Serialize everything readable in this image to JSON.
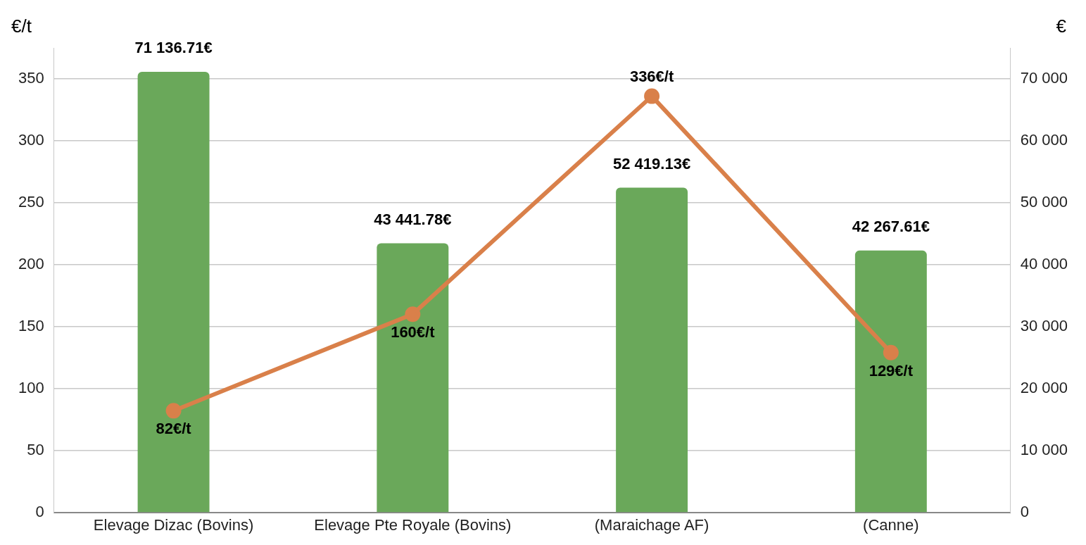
{
  "chart_data": {
    "type": "bar",
    "ylabel": "€/t",
    "y2label": "€",
    "categories": [
      "Elevage Dizac (Bovins)",
      "Elevage Pte Royale (Bovins)",
      "(Maraichage AF)",
      "(Canne)"
    ],
    "series": [
      {
        "axis": "y2",
        "color": "#6aa85a",
        "values": [
          71136.71,
          43441.78,
          52419.13,
          42267.61
        ],
        "value_labels": [
          "71 136.71€",
          "43 441.78€",
          "52 419.13€",
          "42 267.61€"
        ]
      },
      {
        "type": "line",
        "axis": "y",
        "color": "#d9804a",
        "marker": "circle",
        "values": [
          82,
          160,
          336,
          129
        ],
        "value_labels": [
          "82€/t",
          "160€/t",
          "336€/t",
          "129€/t"
        ]
      }
    ],
    "ylim": [
      0,
      375
    ],
    "yticks": [
      0,
      50,
      100,
      150,
      200,
      250,
      300,
      350
    ],
    "y2lim": [
      0,
      75000
    ],
    "y2ticks": [
      {
        "value": 0,
        "label": "0"
      },
      {
        "value": 10000,
        "label": "10 000"
      },
      {
        "value": 20000,
        "label": "20 000"
      },
      {
        "value": 30000,
        "label": "30 000"
      },
      {
        "value": 40000,
        "label": "40 000"
      },
      {
        "value": 50000,
        "label": "50 000"
      },
      {
        "value": 60000,
        "label": "60 000"
      },
      {
        "value": 70000,
        "label": "70 000"
      }
    ],
    "grid": "y",
    "legend": false
  }
}
